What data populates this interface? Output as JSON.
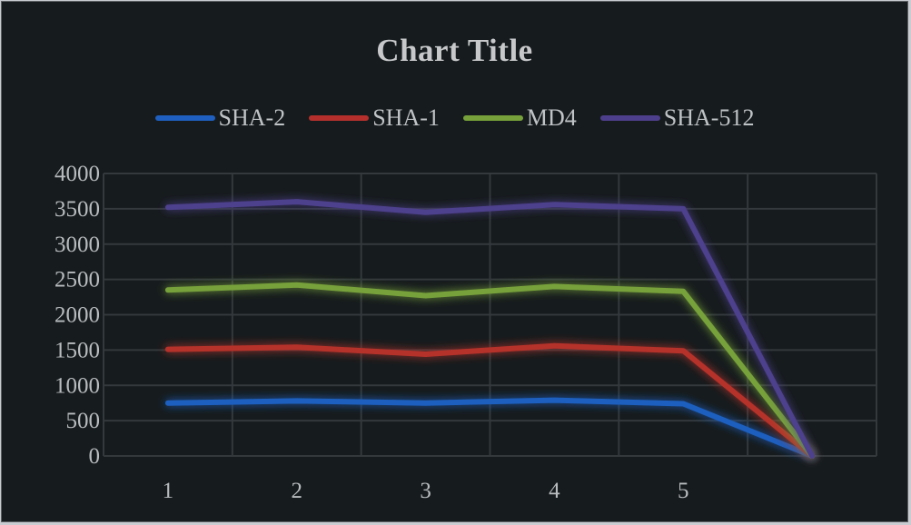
{
  "chart_data": {
    "type": "line",
    "title": "Chart Title",
    "xlabel": "",
    "ylabel": "",
    "categories": [
      "1",
      "2",
      "3",
      "4",
      "5",
      ""
    ],
    "ylim": [
      0,
      4000
    ],
    "yticks": [
      0,
      500,
      1000,
      1500,
      2000,
      2500,
      3000,
      3500,
      4000
    ],
    "grid": true,
    "legend_position": "top",
    "series": [
      {
        "name": "SHA-2",
        "color": "#1f5fbf",
        "values": [
          750,
          780,
          750,
          790,
          740,
          0
        ]
      },
      {
        "name": "SHA-1",
        "color": "#b5302c",
        "values": [
          1510,
          1540,
          1440,
          1560,
          1490,
          0
        ]
      },
      {
        "name": "MD4",
        "color": "#77a13a",
        "values": [
          2350,
          2420,
          2270,
          2400,
          2330,
          0
        ]
      },
      {
        "name": "SHA-512",
        "color": "#4e3f8c",
        "values": [
          3520,
          3600,
          3450,
          3560,
          3500,
          0
        ]
      }
    ]
  }
}
